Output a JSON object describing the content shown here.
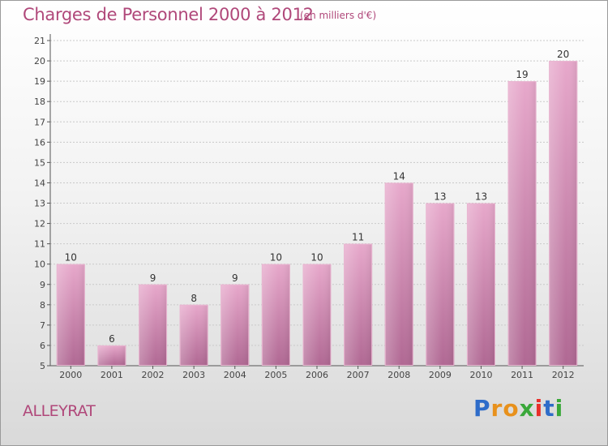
{
  "header": {
    "title": "Charges de Personnel 2000 à 2012",
    "unit": "(en milliers d'€)"
  },
  "footer": {
    "commune": "ALLEYRAT",
    "brand_letters": [
      "P",
      "r",
      "o",
      "x",
      "i",
      "t",
      "i"
    ],
    "brand_colors": [
      "#2e6cc9",
      "#e8911c",
      "#e8911c",
      "#3aa83a",
      "#e8302b",
      "#2e6cc9",
      "#3aa83a"
    ]
  },
  "colors": {
    "bar": "#d68db4",
    "bar_dark": "#b8689a",
    "title": "#b0487a"
  },
  "chart_data": {
    "type": "bar",
    "categories": [
      "2000",
      "2001",
      "2002",
      "2003",
      "2004",
      "2005",
      "2006",
      "2007",
      "2008",
      "2009",
      "2010",
      "2011",
      "2012"
    ],
    "values": [
      10,
      6,
      9,
      8,
      9,
      10,
      10,
      11,
      14,
      13,
      13,
      19,
      20
    ],
    "title": "Charges de Personnel 2000 à 2012",
    "xlabel": "",
    "ylabel": "",
    "ylim": [
      5,
      21
    ],
    "yticks": [
      5,
      6,
      7,
      8,
      9,
      10,
      11,
      12,
      13,
      14,
      15,
      16,
      17,
      18,
      19,
      20,
      21
    ],
    "grid": "horizontal"
  }
}
